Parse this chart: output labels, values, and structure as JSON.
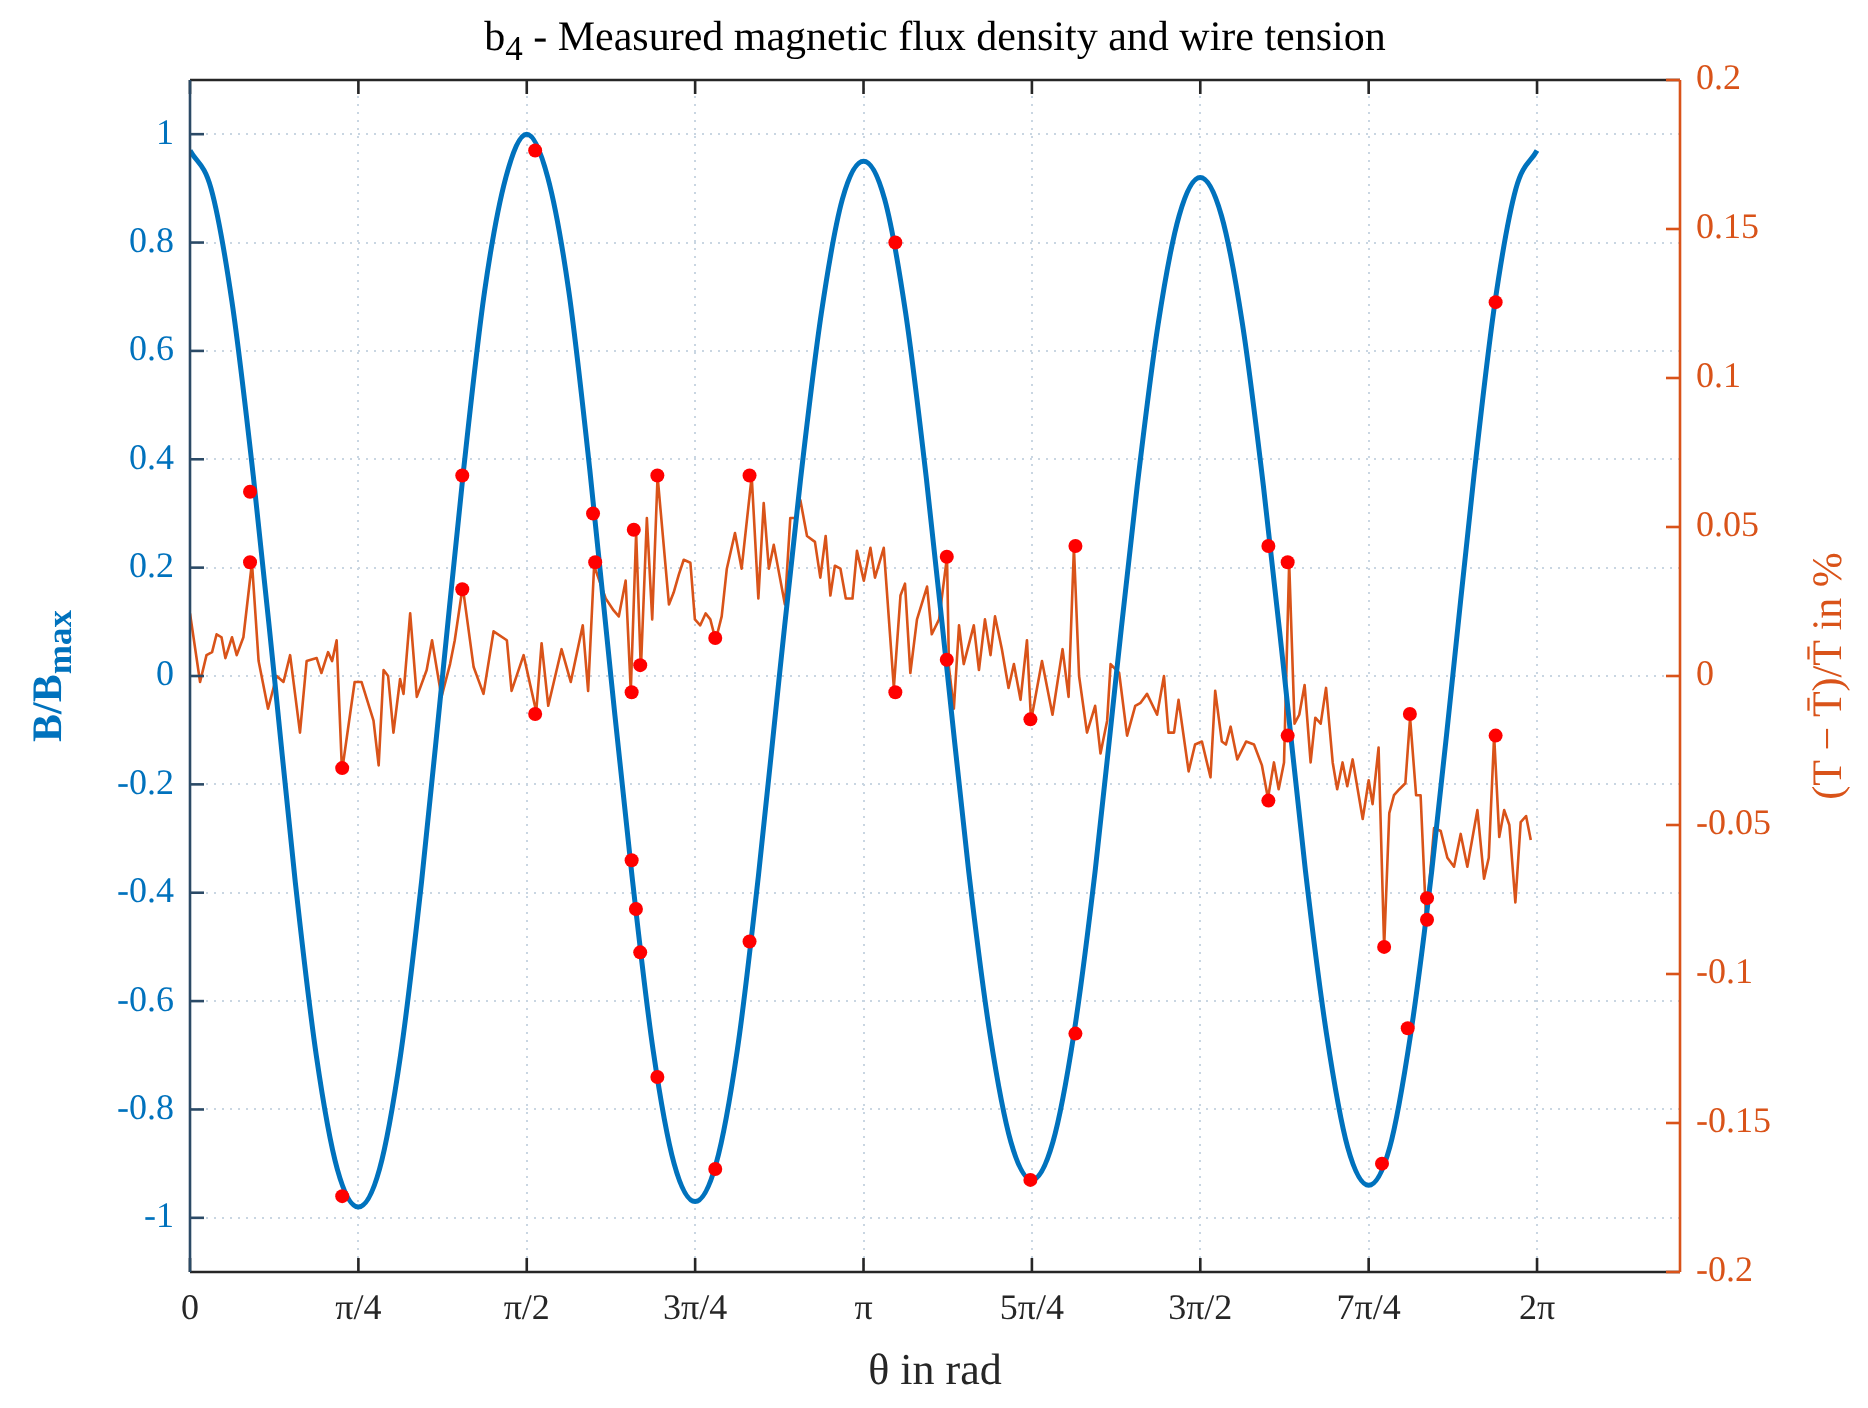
{
  "chart_data": {
    "type": "line",
    "title": "b$_{4}$ - Measured magnetic flux density and wire tension",
    "xlabel": "θ in rad",
    "ylabel": "B/B$_{max}$",
    "y2label": "(T − T̄)/T̄ in %",
    "xlim": [
      0,
      6.95
    ],
    "xticks": [
      0,
      {
        "value": 0.785398,
        "label": "π/4"
      },
      {
        "value": 1.570796,
        "label": "π/2"
      },
      {
        "value": 2.356194,
        "label": "3π/4"
      },
      {
        "value": 3.141593,
        "label": "π"
      },
      {
        "value": 3.926991,
        "label": "5π/4"
      },
      {
        "value": 4.712389,
        "label": "3π/2"
      },
      {
        "value": 5.497787,
        "label": "7π/4"
      },
      {
        "value": 6.283185,
        "label": "2π"
      }
    ],
    "ylim": [
      -1.1,
      1.1
    ],
    "yticks": [
      -1,
      -0.8,
      -0.6,
      -0.4,
      -0.2,
      0,
      0.2,
      0.4,
      0.6,
      0.8,
      1
    ],
    "y2lim": [
      -0.2,
      0.2
    ],
    "y2ticks": [
      -0.2,
      -0.15,
      -0.1,
      -0.05,
      0,
      0.05,
      0.1,
      0.15,
      0.2
    ],
    "grid": true,
    "series": [
      {
        "color": "#0072bd",
        "x": [
          0,
          0.098,
          0.196,
          0.295,
          0.393,
          0.491,
          0.589,
          0.687,
          0.785,
          0.884,
          0.982,
          1.08,
          1.178,
          1.276,
          1.374,
          1.473,
          1.571,
          1.669,
          1.767,
          1.865,
          1.963,
          2.062,
          2.16,
          2.258,
          2.356,
          2.454,
          2.553,
          2.651,
          2.749,
          2.847,
          2.945,
          3.043,
          3.142,
          3.24,
          3.338,
          3.436,
          3.534,
          3.632,
          3.731,
          3.829,
          3.927,
          4.025,
          4.123,
          4.222,
          4.32,
          4.418,
          4.516,
          4.614,
          4.712,
          4.811,
          4.909,
          5.007,
          5.105,
          5.203,
          5.301,
          5.4,
          5.498,
          5.596,
          5.694,
          5.792,
          5.89,
          5.989,
          6.087,
          6.185,
          6.283
        ],
        "values": [
          0.97,
          0.9,
          0.69,
          0.37,
          0,
          -0.38,
          -0.7,
          -0.91,
          -0.98,
          -0.91,
          -0.7,
          -0.38,
          0,
          0.38,
          0.71,
          0.92,
          1.0,
          0.92,
          0.71,
          0.38,
          0,
          -0.37,
          -0.69,
          -0.9,
          -0.97,
          -0.9,
          -0.69,
          -0.37,
          0,
          0.36,
          0.67,
          0.88,
          0.95,
          0.88,
          0.67,
          0.36,
          0,
          -0.36,
          -0.66,
          -0.86,
          -0.93,
          -0.86,
          -0.66,
          -0.36,
          0,
          0.35,
          0.65,
          0.85,
          0.92,
          0.85,
          0.65,
          0.35,
          0,
          -0.36,
          -0.66,
          -0.87,
          -0.94,
          -0.87,
          -0.66,
          -0.36,
          0,
          0.37,
          0.69,
          0.9,
          0.97
        ]
      },
      {
        "color": "#d95319",
        "axis": "y2",
        "x": [
          0,
          0.047,
          0.077,
          0.103,
          0.124,
          0.147,
          0.165,
          0.196,
          0.218,
          0.249,
          0.289,
          0.32,
          0.364,
          0.404,
          0.436,
          0.467,
          0.513,
          0.544,
          0.591,
          0.613,
          0.644,
          0.663,
          0.684,
          0.709,
          0.768,
          0.8,
          0.856,
          0.88,
          0.903,
          0.924,
          0.949,
          0.98,
          0.996,
          1.027,
          1.058,
          1.104,
          1.129,
          1.173,
          1.213,
          1.235,
          1.272,
          1.323,
          1.369,
          1.416,
          1.478,
          1.5,
          1.556,
          1.615,
          1.64,
          1.671,
          1.733,
          1.776,
          1.832,
          1.857,
          1.885,
          1.939,
          1.976,
          2.0,
          2.032,
          2.056,
          2.081,
          2.103,
          2.131,
          2.156,
          2.181,
          2.234,
          2.256,
          2.28,
          2.303,
          2.334,
          2.355,
          2.38,
          2.405,
          2.427,
          2.452,
          2.48,
          2.504,
          2.542,
          2.573,
          2.62,
          2.651,
          2.676,
          2.7,
          2.723,
          2.775,
          2.8,
          2.825,
          2.847,
          2.878,
          2.915,
          2.94,
          2.965,
          2.987,
          3.008,
          3.034,
          3.059,
          3.09,
          3.111,
          3.143,
          3.174,
          3.195,
          3.236,
          3.283,
          3.314,
          3.335,
          3.36,
          3.391,
          3.438,
          3.46,
          3.494,
          3.531,
          3.54,
          3.563,
          3.587,
          3.609,
          3.656,
          3.68,
          3.708,
          3.734,
          3.755,
          3.787,
          3.818,
          3.843,
          3.874,
          3.904,
          3.923,
          3.974,
          4.023,
          4.07,
          4.098,
          4.123,
          4.147,
          4.184,
          4.222,
          4.247,
          4.278,
          4.294,
          4.334,
          4.371,
          4.409,
          4.434,
          4.464,
          4.511,
          4.543,
          4.564,
          4.59,
          4.611,
          4.658,
          4.688,
          4.72,
          4.76,
          4.782,
          4.813,
          4.832,
          4.854,
          4.885,
          4.926,
          4.963,
          5.0,
          5.028,
          5.056,
          5.078,
          5.103,
          5.127,
          5.152,
          5.174,
          5.199,
          5.227,
          5.249,
          5.274,
          5.299,
          5.33,
          5.351,
          5.376,
          5.398,
          5.423,
          5.47,
          5.498,
          5.516,
          5.544,
          5.57,
          5.594,
          5.616,
          5.641,
          5.669,
          5.691,
          5.719,
          5.74,
          5.766,
          5.803,
          5.834,
          5.865,
          5.896,
          5.927,
          5.958,
          6.005,
          6.036,
          6.058,
          6.083,
          6.107,
          6.13,
          6.154,
          6.182,
          6.207,
          6.232,
          6.254
        ],
        "values": [
          0.021,
          -0.002,
          0.007,
          0.008,
          0.014,
          0.013,
          0.006,
          0.013,
          0.007,
          0.013,
          0.038,
          0.005,
          -0.011,
          0,
          -0.002,
          0.007,
          -0.019,
          0.005,
          0.006,
          0.001,
          0.008,
          0.005,
          0.012,
          -0.032,
          -0.002,
          -0.002,
          -0.015,
          -0.03,
          0.002,
          0,
          -0.019,
          -0.001,
          -0.006,
          0.021,
          -0.007,
          0.002,
          0.012,
          -0.007,
          0.004,
          0.012,
          0.03,
          0.003,
          -0.006,
          0.015,
          0.012,
          -0.005,
          0.007,
          -0.012,
          0.011,
          -0.01,
          0.009,
          -0.002,
          0.017,
          -0.005,
          0.037,
          0.026,
          0.022,
          0.02,
          0.032,
          -0.005,
          0.048,
          0.002,
          0.053,
          0.019,
          0.067,
          0.024,
          0.028,
          0.034,
          0.039,
          0.038,
          0.019,
          0.017,
          0.021,
          0.019,
          0.012,
          0.02,
          0.036,
          0.048,
          0.036,
          0.067,
          0.026,
          0.058,
          0.036,
          0.044,
          0.024,
          0.053,
          0.053,
          0.059,
          0.047,
          0.045,
          0.033,
          0.047,
          0.027,
          0.037,
          0.036,
          0.026,
          0.026,
          0.042,
          0.032,
          0.043,
          0.033,
          0.043,
          -0.004,
          0.027,
          0.031,
          0.001,
          0.019,
          0.03,
          0.014,
          0.019,
          0.04,
          0.003,
          -0.011,
          0.017,
          0.004,
          0.017,
          0.002,
          0.019,
          0.007,
          0.02,
          0.009,
          -0.004,
          0.004,
          -0.008,
          0.012,
          -0.015,
          0.005,
          -0.013,
          0.009,
          -0.007,
          0.043,
          0,
          -0.019,
          -0.01,
          -0.026,
          -0.015,
          0.004,
          0.001,
          -0.02,
          -0.01,
          -0.009,
          -0.006,
          -0.013,
          0,
          -0.019,
          -0.019,
          -0.008,
          -0.032,
          -0.023,
          -0.022,
          -0.034,
          -0.005,
          -0.022,
          -0.023,
          -0.017,
          -0.028,
          -0.022,
          -0.023,
          -0.03,
          -0.041,
          -0.029,
          -0.038,
          -0.029,
          0.038,
          -0.016,
          -0.013,
          -0.003,
          -0.029,
          -0.014,
          -0.016,
          -0.004,
          -0.029,
          -0.038,
          -0.029,
          -0.037,
          -0.028,
          -0.048,
          -0.035,
          -0.043,
          -0.024,
          -0.091,
          -0.046,
          -0.04,
          -0.038,
          -0.036,
          -0.014,
          -0.04,
          -0.04,
          -0.082,
          -0.051,
          -0.052,
          -0.061,
          -0.064,
          -0.053,
          -0.064,
          -0.045,
          -0.068,
          -0.061,
          -0.02,
          -0.054,
          -0.045,
          -0.05,
          -0.076,
          -0.049,
          -0.047,
          -0.055
        ]
      },
      {
        "type": "scatter",
        "color": "#ff0000",
        "marker": "circle",
        "x": [
          0.28,
          0.28,
          0.71,
          0.71,
          1.27,
          1.27,
          1.61,
          1.61,
          1.88,
          1.89,
          2.06,
          2.07,
          2.06,
          2.08,
          2.1,
          2.1,
          2.18,
          2.18,
          2.45,
          2.45,
          2.61,
          2.61,
          3.29,
          3.29,
          3.53,
          3.53,
          3.92,
          3.92,
          4.13,
          4.13,
          5.03,
          5.12,
          5.12,
          5.03,
          5.57,
          5.69,
          5.77,
          5.77,
          6.09,
          5.68,
          5.56,
          6.09
        ],
        "values": [
          0.34,
          0.21,
          -0.96,
          -0.17,
          0.37,
          0.16,
          0.97,
          -0.07,
          0.3,
          0.21,
          -0.03,
          0.27,
          -0.34,
          -0.43,
          -0.51,
          0.02,
          0.37,
          -0.74,
          -0.91,
          0.07,
          0.37,
          -0.49,
          0.8,
          -0.03,
          0.22,
          0.03,
          -0.08,
          -0.93,
          0.24,
          -0.66,
          0.24,
          0.21,
          -0.11,
          -0.23,
          -0.5,
          -0.07,
          -0.41,
          -0.45,
          -0.11,
          -0.65,
          -0.9,
          0.69
        ]
      }
    ]
  }
}
